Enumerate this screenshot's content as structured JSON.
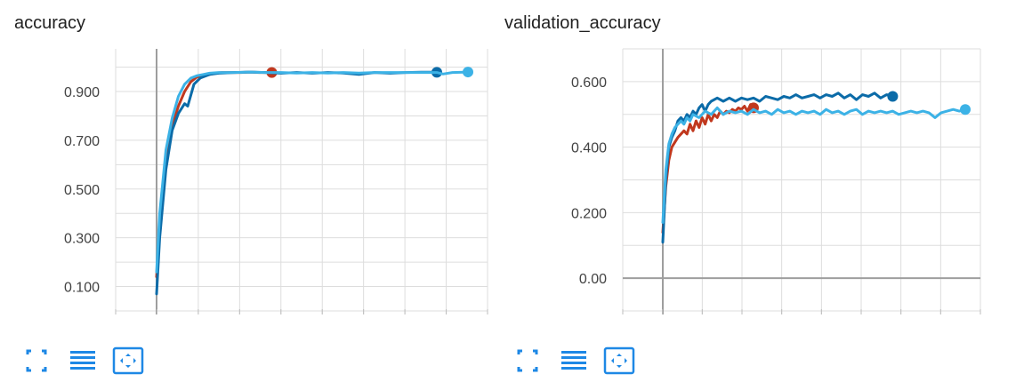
{
  "chart_data": [
    {
      "type": "line",
      "title": "accuracy",
      "xlim": [
        0,
        100
      ],
      "ylim": [
        0.0,
        1.075
      ],
      "yticks": [
        0.1,
        0.3,
        0.5,
        0.7,
        0.9
      ],
      "ytick_labels": [
        "0.100",
        "0.300",
        "0.500",
        "0.700",
        "0.900"
      ],
      "grid": true,
      "series": [
        {
          "color": "#c0381e",
          "x": [
            0,
            1,
            3,
            5,
            7,
            9,
            11,
            13,
            15,
            17,
            19,
            21,
            24,
            27,
            30,
            33,
            37
          ],
          "y": [
            0.14,
            0.36,
            0.62,
            0.76,
            0.84,
            0.9,
            0.94,
            0.96,
            0.965,
            0.97,
            0.975,
            0.978,
            0.978,
            0.978,
            0.98,
            0.978,
            0.978
          ]
        },
        {
          "color": "#0b6ba8",
          "x": [
            0,
            1,
            3,
            5,
            7,
            9,
            10,
            12,
            14,
            17,
            20,
            25,
            30,
            35,
            40,
            45,
            50,
            55,
            60,
            65,
            70,
            75,
            80,
            85,
            90
          ],
          "y": [
            0.07,
            0.3,
            0.58,
            0.74,
            0.81,
            0.85,
            0.84,
            0.93,
            0.955,
            0.97,
            0.975,
            0.978,
            0.98,
            0.978,
            0.975,
            0.978,
            0.975,
            0.978,
            0.976,
            0.97,
            0.978,
            0.975,
            0.978,
            0.979,
            0.979
          ]
        },
        {
          "color": "#3cb2e6",
          "x": [
            0,
            1,
            3,
            5,
            7,
            9,
            11,
            13,
            15,
            17,
            20,
            25,
            30,
            35,
            40,
            45,
            50,
            55,
            60,
            65,
            70,
            75,
            80,
            85,
            90,
            92,
            95,
            100
          ],
          "y": [
            0.16,
            0.4,
            0.66,
            0.79,
            0.88,
            0.93,
            0.955,
            0.965,
            0.97,
            0.975,
            0.978,
            0.978,
            0.98,
            0.978,
            0.978,
            0.976,
            0.978,
            0.976,
            0.978,
            0.976,
            0.978,
            0.978,
            0.978,
            0.978,
            0.978,
            0.972,
            0.978,
            0.98
          ]
        }
      ]
    },
    {
      "type": "line",
      "title": "validation_accuracy",
      "xlim": [
        0,
        100
      ],
      "ylim": [
        -0.1,
        0.7
      ],
      "yticks": [
        0.0,
        0.2,
        0.4,
        0.6
      ],
      "ytick_labels": [
        "0.00",
        "0.200",
        "0.400",
        "0.600"
      ],
      "grid": true,
      "series": [
        {
          "color": "#c0381e",
          "x": [
            0,
            1,
            2,
            3,
            5,
            7,
            8,
            9,
            10,
            11,
            12,
            13,
            14,
            15,
            16,
            17,
            18,
            19,
            20,
            21,
            22,
            23,
            24,
            25,
            26,
            27,
            28,
            29,
            30
          ],
          "y": [
            0.14,
            0.28,
            0.36,
            0.4,
            0.43,
            0.45,
            0.44,
            0.47,
            0.45,
            0.48,
            0.46,
            0.49,
            0.47,
            0.5,
            0.48,
            0.5,
            0.49,
            0.51,
            0.5,
            0.51,
            0.505,
            0.515,
            0.51,
            0.52,
            0.515,
            0.525,
            0.51,
            0.53,
            0.52
          ]
        },
        {
          "color": "#0b6ba8",
          "x": [
            0,
            1,
            2,
            3,
            4,
            5,
            6,
            7,
            8,
            9,
            10,
            11,
            12,
            13,
            14,
            15,
            16,
            18,
            20,
            22,
            24,
            26,
            28,
            30,
            32,
            34,
            36,
            38,
            40,
            42,
            44,
            46,
            48,
            50,
            52,
            54,
            56,
            58,
            60,
            62,
            64,
            66,
            68,
            70,
            72,
            74,
            76
          ],
          "y": [
            0.11,
            0.3,
            0.4,
            0.43,
            0.45,
            0.48,
            0.49,
            0.48,
            0.5,
            0.49,
            0.51,
            0.5,
            0.52,
            0.53,
            0.51,
            0.53,
            0.54,
            0.55,
            0.54,
            0.55,
            0.54,
            0.55,
            0.545,
            0.55,
            0.54,
            0.555,
            0.55,
            0.545,
            0.555,
            0.55,
            0.56,
            0.55,
            0.555,
            0.56,
            0.55,
            0.56,
            0.555,
            0.565,
            0.55,
            0.56,
            0.545,
            0.56,
            0.555,
            0.565,
            0.55,
            0.56,
            0.555
          ]
        },
        {
          "color": "#3cb2e6",
          "x": [
            0,
            1,
            2,
            3,
            4,
            5,
            6,
            7,
            8,
            9,
            10,
            12,
            14,
            16,
            18,
            20,
            22,
            24,
            26,
            28,
            30,
            32,
            34,
            36,
            38,
            40,
            42,
            44,
            46,
            48,
            50,
            52,
            54,
            56,
            58,
            60,
            62,
            64,
            66,
            68,
            70,
            72,
            74,
            76,
            78,
            80,
            82,
            84,
            86,
            88,
            90,
            92,
            94,
            96,
            98,
            100
          ],
          "y": [
            0.17,
            0.33,
            0.41,
            0.44,
            0.46,
            0.47,
            0.48,
            0.47,
            0.49,
            0.48,
            0.5,
            0.49,
            0.51,
            0.5,
            0.52,
            0.5,
            0.51,
            0.505,
            0.51,
            0.5,
            0.515,
            0.505,
            0.51,
            0.5,
            0.515,
            0.505,
            0.51,
            0.5,
            0.51,
            0.505,
            0.51,
            0.5,
            0.515,
            0.505,
            0.51,
            0.5,
            0.51,
            0.515,
            0.5,
            0.51,
            0.505,
            0.51,
            0.505,
            0.51,
            0.5,
            0.505,
            0.51,
            0.505,
            0.51,
            0.505,
            0.49,
            0.505,
            0.51,
            0.515,
            0.51,
            0.515
          ]
        }
      ]
    }
  ],
  "toolbar": {
    "icons": [
      "fullscreen-icon",
      "list-icon",
      "fit-domain-icon"
    ],
    "color": "#1e88e5"
  }
}
